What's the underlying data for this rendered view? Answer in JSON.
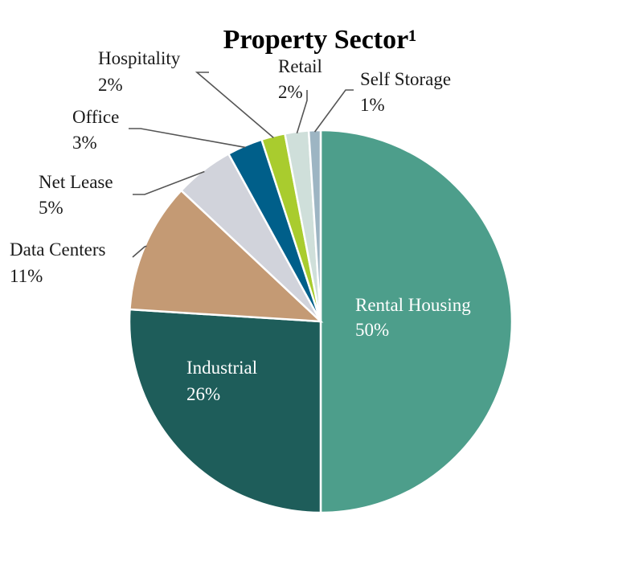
{
  "chart_data": {
    "type": "pie",
    "title": "Property Sector¹",
    "categories": [
      "Rental Housing",
      "Industrial",
      "Data Centers",
      "Net Lease",
      "Office",
      "Hospitality",
      "Retail",
      "Self Storage"
    ],
    "values": [
      50,
      26,
      11,
      5,
      3,
      2,
      2,
      1
    ],
    "value_labels": [
      "50%",
      "26%",
      "11%",
      "5%",
      "3%",
      "2%",
      "2%",
      "1%"
    ],
    "colors": [
      "#4d9e8b",
      "#1e5d5a",
      "#c49a74",
      "#d1d3db",
      "#005f8a",
      "#a9cc2e",
      "#cfdfda",
      "#9db5c3"
    ],
    "start_angle": "12 o'clock",
    "direction": "clockwise",
    "legend": "none"
  }
}
